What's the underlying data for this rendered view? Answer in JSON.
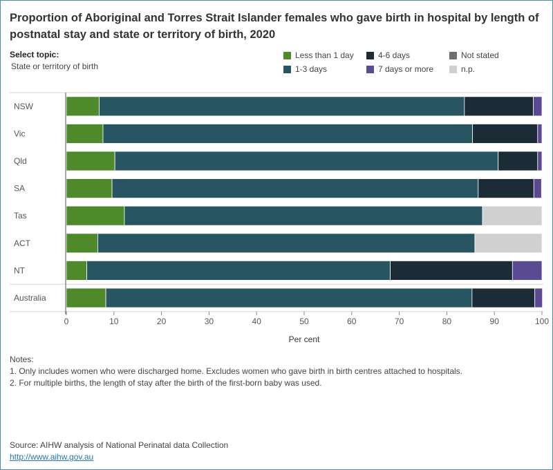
{
  "title": "Proportion of Aboriginal and Torres Strait Islander females who gave birth in hospital by length of postnatal stay and state or territory of birth, 2020",
  "topic": {
    "label": "Select topic:",
    "value": "State or territory of birth"
  },
  "legend": [
    {
      "name": "Less than 1 day",
      "color": "#4e8a2a"
    },
    {
      "name": "1-3 days",
      "color": "#285562"
    },
    {
      "name": "4-6 days",
      "color": "#1b2c36"
    },
    {
      "name": "7 days or more",
      "color": "#5a4a93"
    },
    {
      "name": "Not stated",
      "color": "#6e6e6e"
    },
    {
      "name": "n.p.",
      "color": "#d0d0d0"
    }
  ],
  "chart_data": {
    "type": "bar",
    "orientation": "horizontal",
    "stacked": true,
    "title": "Proportion of Aboriginal and Torres Strait Islander females who gave birth in hospital by length of postnatal stay and state or territory of birth, 2020",
    "xlabel": "Per cent",
    "ylabel": "",
    "xlim": [
      0,
      100
    ],
    "xticks": [
      0,
      10,
      20,
      30,
      40,
      50,
      60,
      70,
      80,
      90,
      100
    ],
    "categories": [
      "NSW",
      "Vic",
      "Qld",
      "SA",
      "Tas",
      "ACT",
      "NT",
      "Australia"
    ],
    "series": [
      {
        "name": "Less than 1 day",
        "values": [
          6.9,
          7.7,
          10.2,
          9.6,
          12.2,
          6.6,
          4.3,
          8.3
        ]
      },
      {
        "name": "1-3 days",
        "values": [
          76.8,
          77.7,
          80.6,
          77.0,
          75.3,
          79.3,
          63.8,
          77.0
        ]
      },
      {
        "name": "4-6 days",
        "values": [
          14.5,
          13.7,
          8.3,
          11.7,
          0,
          0,
          25.7,
          13.2
        ]
      },
      {
        "name": "7 days or more",
        "values": [
          1.8,
          0.9,
          0.9,
          1.6,
          0,
          0,
          6.2,
          1.6
        ]
      },
      {
        "name": "Not stated",
        "values": [
          0,
          0,
          0,
          0,
          0,
          0,
          0,
          0
        ]
      },
      {
        "name": "n.p.",
        "values": [
          0,
          0,
          0,
          0,
          12.5,
          14.1,
          0,
          0
        ]
      }
    ],
    "grid": false,
    "legend_position": "top-right"
  },
  "notes": {
    "heading": "Notes:",
    "items": [
      "1. Only includes women who were discharged home. Excludes women who gave birth in birth centres attached to hospitals.",
      "2. For multiple births, the length of stay after the birth of the first-born baby was used."
    ]
  },
  "source": {
    "text": "Source: AIHW analysis of National Perinatal data Collection",
    "link": "http://www.aihw.gov.au"
  }
}
